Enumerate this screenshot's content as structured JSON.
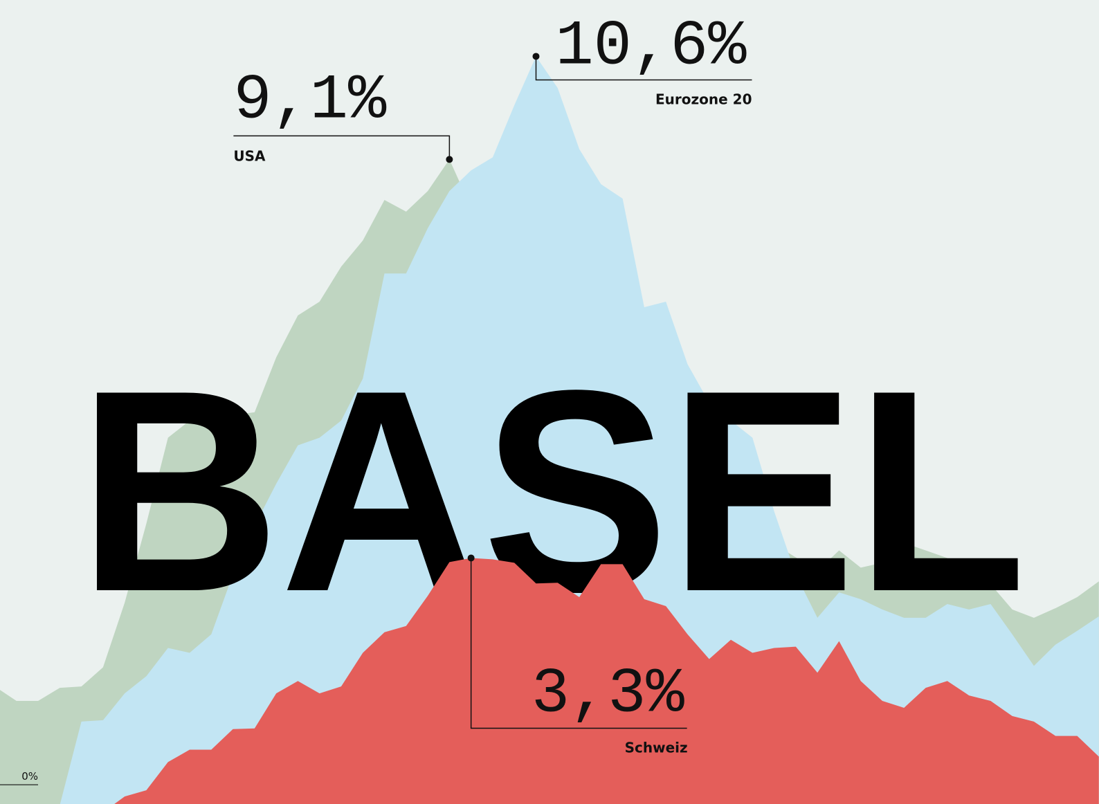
{
  "chart_data": {
    "type": "area",
    "title": "BASEL",
    "categories": [
      null,
      null,
      null,
      null,
      null,
      null,
      null,
      null,
      null,
      null,
      null,
      null,
      null,
      null,
      null,
      null,
      null,
      null,
      null,
      null,
      null,
      null,
      null,
      null,
      null,
      null,
      null,
      null,
      null,
      null,
      null,
      null,
      null,
      null,
      null,
      null,
      null,
      null,
      null,
      null,
      null,
      null,
      null,
      null,
      null,
      null,
      null,
      null,
      null,
      null,
      null,
      null
    ],
    "ylim": [
      -0.28,
      11.42
    ],
    "yticks": [
      {
        "value": 0,
        "label": "0%"
      }
    ],
    "series": [
      {
        "name": "USA",
        "color": "#bfd5c1",
        "values": [
          1.43,
          1.22,
          1.22,
          1.41,
          1.43,
          1.71,
          2.65,
          3.8,
          5.05,
          5.3,
          5.35,
          5.38,
          5.42,
          6.22,
          6.83,
          7.03,
          7.54,
          7.92,
          8.51,
          8.34,
          8.64,
          9.1,
          8.4,
          8.0,
          7.6,
          7.2,
          6.8,
          6.4,
          6.0,
          5.6,
          5.2,
          4.9,
          4.6,
          4.3,
          4.0,
          3.7,
          3.5,
          3.31,
          3.11,
          3.41,
          3.16,
          3.23,
          3.52,
          3.41,
          3.3,
          3.0,
          2.92,
          2.55,
          2.43,
          2.57,
          2.73,
          2.96
        ],
        "value_labels": [
          null,
          null,
          null,
          null,
          null,
          null,
          null,
          null,
          null,
          null,
          null,
          null,
          null,
          null,
          null,
          null,
          null,
          null,
          null,
          null,
          null,
          "9,1%",
          null,
          null,
          null,
          null,
          null,
          null,
          null,
          null,
          null,
          null,
          null,
          null,
          null,
          null,
          null,
          null,
          null,
          null,
          null,
          null,
          null,
          null,
          null,
          null,
          null,
          null,
          null,
          null,
          null,
          null
        ]
      },
      {
        "name": "Eurozone 20",
        "color": "#c2e5f3",
        "values": [
          -0.6,
          -0.6,
          -0.6,
          -0.3,
          0.92,
          0.94,
          1.33,
          1.58,
          1.99,
          1.92,
          2.19,
          3.06,
          3.77,
          4.38,
          4.94,
          5.05,
          5.3,
          5.91,
          7.44,
          7.44,
          8.1,
          8.64,
          8.94,
          9.13,
          9.89,
          10.6,
          10.14,
          9.25,
          8.74,
          8.53,
          6.95,
          7.03,
          6.12,
          5.56,
          5.3,
          5.05,
          3.98,
          3.06,
          2.43,
          2.8,
          2.7,
          2.55,
          2.43,
          2.43,
          2.63,
          2.55,
          2.63,
          2.19,
          1.73,
          2.04,
          2.24,
          2.45
        ],
        "value_labels": [
          null,
          null,
          null,
          null,
          null,
          null,
          null,
          null,
          null,
          null,
          null,
          null,
          null,
          null,
          null,
          null,
          null,
          null,
          null,
          null,
          null,
          null,
          null,
          null,
          null,
          "10,6%",
          null,
          null,
          null,
          null,
          null,
          null,
          null,
          null,
          null,
          null,
          null,
          null,
          null,
          null,
          null,
          null,
          null,
          null,
          null,
          null,
          null,
          null,
          null,
          null,
          null,
          null
        ]
      },
      {
        "name": "Schweiz",
        "color": "#e45e5a",
        "values": [
          -0.4,
          -0.4,
          -0.4,
          -0.4,
          -0.4,
          -0.4,
          -0.17,
          -0.08,
          0.33,
          0.51,
          0.51,
          0.81,
          0.82,
          1.33,
          1.51,
          1.33,
          1.43,
          1.92,
          2.22,
          2.31,
          2.75,
          3.24,
          3.3,
          3.28,
          3.23,
          2.93,
          2.94,
          2.73,
          3.21,
          3.21,
          2.7,
          2.6,
          2.19,
          1.83,
          2.11,
          1.92,
          1.99,
          2.01,
          1.63,
          2.09,
          1.51,
          1.22,
          1.12,
          1.41,
          1.51,
          1.3,
          1.22,
          1.0,
          0.92,
          0.71,
          0.71,
          0.41
        ],
        "value_labels": [
          null,
          null,
          null,
          null,
          null,
          null,
          null,
          null,
          null,
          null,
          null,
          null,
          null,
          null,
          null,
          null,
          null,
          null,
          null,
          null,
          null,
          null,
          "3,3%",
          null,
          null,
          null,
          null,
          null,
          null,
          null,
          null,
          null,
          null,
          null,
          null,
          null,
          null,
          null,
          null,
          null,
          null,
          null,
          null,
          null,
          null,
          null,
          null,
          null,
          null,
          null,
          null,
          null
        ]
      }
    ]
  }
}
